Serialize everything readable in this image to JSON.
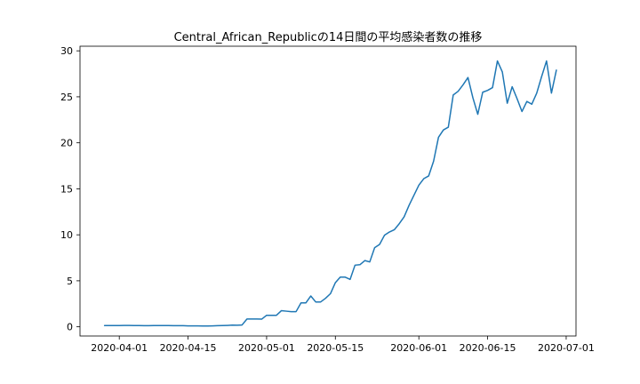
{
  "chart_data": {
    "type": "line",
    "title": "Central_African_Republicの14日間の平均感染者数の推移",
    "xlabel": "",
    "ylabel": "",
    "x_start": "2020-03-29",
    "x_tick_labels": [
      "2020-04-01",
      "2020-04-15",
      "2020-05-01",
      "2020-05-15",
      "2020-06-01",
      "2020-06-15",
      "2020-07-01"
    ],
    "y_tick_labels": [
      "0",
      "5",
      "10",
      "15",
      "20",
      "25",
      "30"
    ],
    "xlim": [
      "2020-03-24",
      "2020-07-03"
    ],
    "ylim": [
      -1.0,
      30.5
    ],
    "grid": false,
    "line_color": "#1f77b4",
    "series": [
      {
        "values": [
          0.14,
          0.14,
          0.13,
          0.13,
          0.15,
          0.15,
          0.14,
          0.13,
          0.12,
          0.12,
          0.13,
          0.14,
          0.14,
          0.13,
          0.12,
          0.12,
          0.12,
          0.1,
          0.1,
          0.1,
          0.09,
          0.09,
          0.1,
          0.12,
          0.14,
          0.15,
          0.18,
          0.17,
          0.2,
          0.85,
          0.85,
          0.85,
          0.83,
          1.25,
          1.25,
          1.25,
          1.75,
          1.7,
          1.65,
          1.65,
          2.6,
          2.6,
          3.35,
          2.7,
          2.7,
          3.1,
          3.6,
          4.8,
          5.4,
          5.4,
          5.15,
          6.7,
          6.75,
          7.2,
          7.05,
          8.6,
          8.95,
          9.95,
          10.3,
          10.55,
          11.2,
          11.95,
          13.2,
          14.3,
          15.4,
          16.1,
          16.4,
          18.0,
          20.6,
          21.4,
          21.7,
          25.2,
          25.6,
          26.3,
          27.1,
          24.9,
          23.1,
          25.5,
          25.7,
          26.0,
          28.9,
          27.7,
          24.3,
          26.1,
          24.8,
          23.4,
          24.5,
          24.2,
          25.4,
          27.2,
          28.9,
          25.4,
          27.9
        ]
      }
    ]
  }
}
